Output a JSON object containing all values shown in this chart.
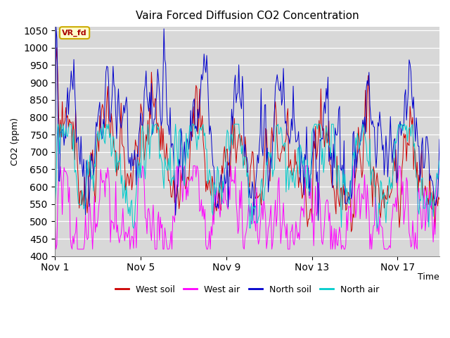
{
  "title": "Vaira Forced Diffusion CO2 Concentration",
  "ylabel": "CO2 (ppm)",
  "xlabel": "Time",
  "ylim": [
    400,
    1060
  ],
  "yticks": [
    400,
    450,
    500,
    550,
    600,
    650,
    700,
    750,
    800,
    850,
    900,
    950,
    1000,
    1050
  ],
  "xtick_labels": [
    "Nov 1",
    "Nov 5",
    "Nov 9",
    "Nov 13",
    "Nov 17"
  ],
  "xtick_positions": [
    0,
    96,
    192,
    288,
    384
  ],
  "n_points": 432,
  "colors": {
    "west_soil": "#cc0000",
    "west_air": "#ff00ff",
    "north_soil": "#0000cc",
    "north_air": "#00cccc"
  },
  "legend_labels": [
    "West soil",
    "West air",
    "North soil",
    "North air"
  ],
  "vr_fd_box": {
    "text": "VR_fd",
    "facecolor": "#ffffcc",
    "edgecolor": "#ccaa00",
    "textcolor": "#aa0000"
  },
  "plot_bg": "#d8d8d8",
  "grid_color": "#ffffff"
}
